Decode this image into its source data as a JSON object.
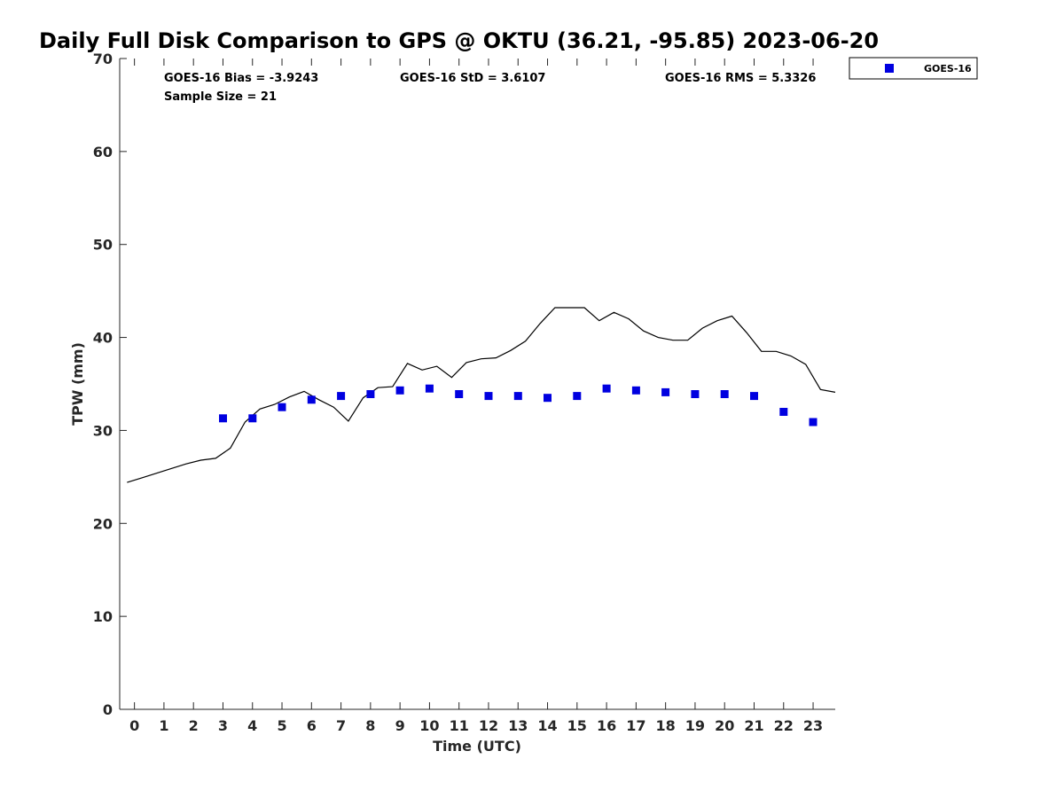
{
  "chart_data": {
    "type": "scatter",
    "title": "Daily Full Disk Comparison to GPS @ OKTU (36.21, -95.85) 2023-06-20",
    "xlabel": "Time (UTC)",
    "ylabel": "TPW (mm)",
    "xlim": [
      -0.5,
      23.75
    ],
    "ylim": [
      0,
      70
    ],
    "xticks": [
      "0",
      "1",
      "2",
      "3",
      "4",
      "5",
      "6",
      "7",
      "8",
      "9",
      "10",
      "11",
      "12",
      "13",
      "14",
      "15",
      "16",
      "17",
      "18",
      "19",
      "20",
      "21",
      "22",
      "23"
    ],
    "yticks": [
      "0",
      "10",
      "20",
      "30",
      "40",
      "50",
      "60",
      "70"
    ],
    "grid": false,
    "legend_position": "top-right",
    "stats": {
      "bias": "GOES-16 Bias = -3.9243",
      "std": "GOES-16 StD = 3.6107",
      "rms": "GOES-16 RMS = 5.3326",
      "sample": "Sample Size = 21"
    },
    "series": [
      {
        "name": "GOES-16",
        "type": "scatter",
        "color": "#0000e0",
        "marker": "square",
        "x": [
          3,
          4,
          5,
          6,
          7,
          8,
          9,
          10,
          11,
          12,
          13,
          14,
          15,
          16,
          17,
          18,
          19,
          20,
          21,
          22,
          23
        ],
        "y": [
          31.3,
          31.3,
          32.5,
          33.3,
          33.7,
          33.9,
          34.3,
          34.5,
          33.9,
          33.7,
          33.7,
          33.5,
          33.7,
          34.5,
          34.3,
          34.1,
          33.9,
          33.9,
          33.7,
          32.0,
          30.9
        ]
      },
      {
        "type": "line",
        "color": "#000000",
        "x": [
          -0.25,
          0.25,
          0.75,
          1.25,
          1.75,
          2.25,
          2.75,
          3.25,
          3.75,
          4.25,
          4.75,
          5.25,
          5.75,
          6.25,
          6.75,
          7.25,
          7.75,
          8.25,
          8.75,
          9.25,
          9.75,
          10.25,
          10.75,
          11.25,
          11.75,
          12.25,
          12.75,
          13.25,
          13.75,
          14.25,
          14.75,
          15.25,
          15.75,
          16.25,
          16.75,
          17.25,
          17.75,
          18.25,
          18.75,
          19.25,
          19.75,
          20.25,
          20.75,
          21.25,
          21.75,
          22.25,
          22.75,
          23.25,
          23.75
        ],
        "y": [
          24.4,
          24.9,
          25.4,
          25.9,
          26.4,
          26.8,
          27.0,
          28.1,
          30.9,
          32.3,
          32.8,
          33.6,
          34.2,
          33.3,
          32.5,
          31.0,
          33.5,
          34.6,
          34.7,
          37.2,
          36.5,
          36.9,
          35.7,
          37.3,
          37.7,
          37.8,
          38.6,
          39.6,
          41.5,
          43.2,
          43.2,
          43.2,
          41.8,
          42.7,
          42.0,
          40.7,
          40.0,
          39.7,
          39.7,
          41.0,
          41.8,
          42.3,
          40.5,
          38.5,
          38.5,
          38.0,
          37.1,
          34.4,
          34.1
        ]
      }
    ]
  }
}
